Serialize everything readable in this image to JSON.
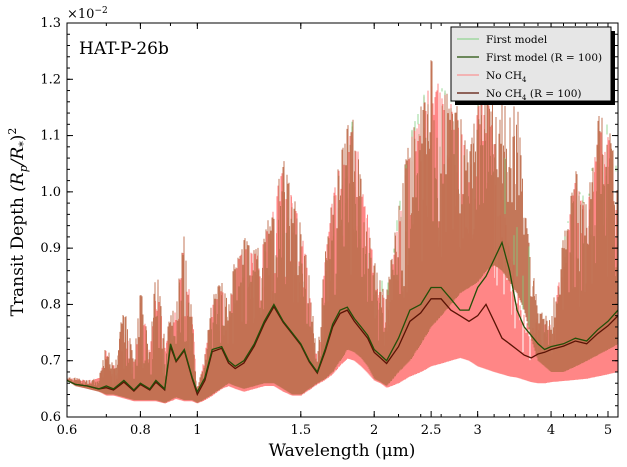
{
  "chart_data": {
    "type": "line",
    "annotation": "HAT-P-26b",
    "xlabel": "Wavelength (μm)",
    "ylabel": "Transit Depth (R_p/R_*)^2",
    "ylabel_parts": [
      "Transit Depth ",
      "(R",
      "p",
      "/R",
      "*",
      ")",
      "2"
    ],
    "y_multiplier": "×10",
    "y_multiplier_exp": "−2",
    "x_scale": "log",
    "xlim": [
      0.6,
      5.2
    ],
    "ylim": [
      0.6,
      1.3
    ],
    "xticks": [
      0.6,
      0.8,
      1,
      1.5,
      2,
      2.5,
      3,
      4,
      5
    ],
    "xtick_labels": [
      "0.6",
      "0.8",
      "1",
      "1.5",
      "2",
      "2.5",
      "3",
      "4",
      "5"
    ],
    "yticks": [
      0.6,
      0.7,
      0.8,
      0.9,
      1.0,
      1.1,
      1.2,
      1.3
    ],
    "ytick_labels": [
      "0.6",
      "0.7",
      "0.8",
      "0.9",
      "1.0",
      "1.1",
      "1.2",
      "1.3"
    ],
    "grid": false,
    "legend_position": "top-right",
    "legend": [
      {
        "label": "First model",
        "sub": "",
        "color": "#7fd07f",
        "width": 1
      },
      {
        "label": "First model (R = 100)",
        "sub": "",
        "color": "#234f08",
        "width": 1.3
      },
      {
        "label": "No CH",
        "sub": "4",
        "color": "#ff8080",
        "width": 1
      },
      {
        "label": "No CH",
        "sub": "4",
        "suffix": " (R = 100)",
        "color": "#5a1305",
        "width": 1.3
      }
    ],
    "colors": {
      "first_model": "#7fd07f",
      "first_model_r100": "#234f08",
      "no_ch4": "#ff8080",
      "no_ch4_r100": "#5a1305",
      "overlap_fill": "#c07050"
    },
    "series": [
      {
        "name": "First model",
        "kind": "high-res envelope",
        "x": [
          0.6,
          0.62,
          0.65,
          0.68,
          0.7,
          0.72,
          0.75,
          0.78,
          0.8,
          0.83,
          0.85,
          0.88,
          0.9,
          0.92,
          0.95,
          0.98,
          1.0,
          1.03,
          1.06,
          1.1,
          1.13,
          1.16,
          1.2,
          1.25,
          1.3,
          1.35,
          1.4,
          1.45,
          1.5,
          1.55,
          1.6,
          1.65,
          1.7,
          1.75,
          1.8,
          1.85,
          1.9,
          1.95,
          2.0,
          2.05,
          2.1,
          2.2,
          2.3,
          2.4,
          2.5,
          2.6,
          2.7,
          2.8,
          2.9,
          3.0,
          3.1,
          3.2,
          3.3,
          3.4,
          3.5,
          3.6,
          3.7,
          3.8,
          3.9,
          4.0,
          4.2,
          4.4,
          4.6,
          4.8,
          5.0,
          5.2
        ],
        "y_max": [
          0.67,
          0.67,
          0.665,
          0.67,
          0.73,
          0.69,
          0.8,
          0.7,
          0.84,
          0.71,
          0.88,
          0.74,
          0.78,
          0.8,
          0.93,
          0.78,
          0.65,
          0.71,
          0.82,
          0.84,
          0.8,
          0.89,
          0.92,
          0.9,
          0.92,
          1.0,
          1.06,
          1.0,
          0.95,
          0.85,
          0.7,
          0.9,
          1.0,
          1.06,
          1.12,
          1.13,
          1.05,
          0.98,
          0.88,
          0.85,
          0.83,
          0.97,
          1.11,
          1.15,
          1.24,
          1.2,
          1.18,
          1.14,
          1.06,
          1.17,
          1.21,
          1.15,
          1.17,
          1.13,
          1.18,
          0.98,
          0.88,
          0.8,
          0.78,
          0.78,
          0.92,
          1.04,
          0.98,
          1.14,
          1.12,
          1.04
        ],
        "y_min": [
          0.665,
          0.655,
          0.65,
          0.645,
          0.64,
          0.64,
          0.635,
          0.63,
          0.63,
          0.63,
          0.63,
          0.625,
          0.63,
          0.635,
          0.63,
          0.63,
          0.625,
          0.632,
          0.64,
          0.652,
          0.66,
          0.655,
          0.65,
          0.655,
          0.66,
          0.66,
          0.65,
          0.64,
          0.64,
          0.65,
          0.66,
          0.668,
          0.68,
          0.7,
          0.72,
          0.715,
          0.705,
          0.69,
          0.668,
          0.662,
          0.655,
          0.68,
          0.7,
          0.73,
          0.76,
          0.78,
          0.8,
          0.82,
          0.83,
          0.84,
          0.86,
          0.87,
          0.86,
          0.84,
          0.82,
          0.79,
          0.74,
          0.7,
          0.69,
          0.68,
          0.68,
          0.69,
          0.7,
          0.71,
          0.72,
          0.73
        ]
      },
      {
        "name": "First model (R = 100)",
        "kind": "binned line",
        "x": [
          0.6,
          0.62,
          0.65,
          0.68,
          0.7,
          0.72,
          0.75,
          0.78,
          0.8,
          0.83,
          0.85,
          0.88,
          0.9,
          0.92,
          0.95,
          0.98,
          1.0,
          1.03,
          1.06,
          1.1,
          1.13,
          1.16,
          1.2,
          1.25,
          1.3,
          1.35,
          1.4,
          1.45,
          1.5,
          1.55,
          1.6,
          1.65,
          1.7,
          1.75,
          1.8,
          1.85,
          1.9,
          1.95,
          2.0,
          2.05,
          2.1,
          2.2,
          2.3,
          2.4,
          2.5,
          2.6,
          2.7,
          2.8,
          2.9,
          3.0,
          3.1,
          3.2,
          3.3,
          3.4,
          3.5,
          3.6,
          3.7,
          3.8,
          3.9,
          4.0,
          4.2,
          4.4,
          4.6,
          4.8,
          5.0,
          5.2
        ],
        "y": [
          0.665,
          0.658,
          0.655,
          0.65,
          0.655,
          0.65,
          0.665,
          0.648,
          0.66,
          0.65,
          0.665,
          0.65,
          0.73,
          0.7,
          0.72,
          0.67,
          0.645,
          0.67,
          0.72,
          0.725,
          0.7,
          0.69,
          0.7,
          0.73,
          0.77,
          0.8,
          0.77,
          0.75,
          0.73,
          0.7,
          0.68,
          0.72,
          0.765,
          0.79,
          0.795,
          0.775,
          0.76,
          0.745,
          0.72,
          0.71,
          0.7,
          0.74,
          0.79,
          0.8,
          0.83,
          0.83,
          0.81,
          0.79,
          0.79,
          0.83,
          0.85,
          0.88,
          0.91,
          0.86,
          0.79,
          0.76,
          0.745,
          0.73,
          0.72,
          0.725,
          0.73,
          0.74,
          0.735,
          0.755,
          0.77,
          0.79
        ]
      },
      {
        "name": "No CH4",
        "kind": "high-res envelope",
        "x": [
          0.6,
          0.62,
          0.65,
          0.68,
          0.7,
          0.72,
          0.75,
          0.78,
          0.8,
          0.83,
          0.85,
          0.88,
          0.9,
          0.92,
          0.95,
          0.98,
          1.0,
          1.03,
          1.06,
          1.1,
          1.13,
          1.16,
          1.2,
          1.25,
          1.3,
          1.35,
          1.4,
          1.45,
          1.5,
          1.55,
          1.6,
          1.65,
          1.7,
          1.75,
          1.8,
          1.85,
          1.9,
          1.95,
          2.0,
          2.05,
          2.1,
          2.2,
          2.3,
          2.4,
          2.5,
          2.6,
          2.7,
          2.8,
          2.9,
          3.0,
          3.1,
          3.2,
          3.3,
          3.4,
          3.5,
          3.6,
          3.7,
          3.8,
          3.9,
          4.0,
          4.2,
          4.4,
          4.6,
          4.8,
          5.0,
          5.2
        ],
        "y_max": [
          0.67,
          0.67,
          0.665,
          0.67,
          0.72,
          0.69,
          0.78,
          0.7,
          0.82,
          0.71,
          0.86,
          0.74,
          0.77,
          0.79,
          0.91,
          0.78,
          0.65,
          0.71,
          0.8,
          0.83,
          0.79,
          0.87,
          0.9,
          0.89,
          0.91,
          0.99,
          1.04,
          0.99,
          0.94,
          0.84,
          0.69,
          0.88,
          0.99,
          1.05,
          1.1,
          1.11,
          1.04,
          0.97,
          0.86,
          0.83,
          0.8,
          0.95,
          1.09,
          1.13,
          1.22,
          1.18,
          1.16,
          1.12,
          1.04,
          1.15,
          1.19,
          1.1,
          1.0,
          0.9,
          0.85,
          0.78,
          0.75,
          0.78,
          0.77,
          0.77,
          0.9,
          1.02,
          0.96,
          1.12,
          1.1,
          1.02
        ],
        "y_min": [
          0.665,
          0.655,
          0.65,
          0.645,
          0.638,
          0.638,
          0.633,
          0.628,
          0.628,
          0.628,
          0.628,
          0.624,
          0.628,
          0.632,
          0.628,
          0.628,
          0.624,
          0.63,
          0.638,
          0.65,
          0.655,
          0.65,
          0.645,
          0.65,
          0.655,
          0.655,
          0.645,
          0.638,
          0.638,
          0.648,
          0.658,
          0.666,
          0.676,
          0.692,
          0.704,
          0.7,
          0.69,
          0.678,
          0.665,
          0.66,
          0.652,
          0.66,
          0.672,
          0.68,
          0.69,
          0.695,
          0.7,
          0.705,
          0.7,
          0.69,
          0.685,
          0.68,
          0.676,
          0.672,
          0.67,
          0.666,
          0.662,
          0.66,
          0.66,
          0.662,
          0.664,
          0.666,
          0.668,
          0.672,
          0.676,
          0.68
        ]
      },
      {
        "name": "No CH4 (R = 100)",
        "kind": "binned line",
        "x": [
          0.6,
          0.62,
          0.65,
          0.68,
          0.7,
          0.72,
          0.75,
          0.78,
          0.8,
          0.83,
          0.85,
          0.88,
          0.9,
          0.92,
          0.95,
          0.98,
          1.0,
          1.03,
          1.06,
          1.1,
          1.13,
          1.16,
          1.2,
          1.25,
          1.3,
          1.35,
          1.4,
          1.45,
          1.5,
          1.55,
          1.6,
          1.65,
          1.7,
          1.75,
          1.8,
          1.85,
          1.9,
          1.95,
          2.0,
          2.05,
          2.1,
          2.2,
          2.3,
          2.4,
          2.5,
          2.6,
          2.7,
          2.8,
          2.9,
          3.0,
          3.1,
          3.2,
          3.3,
          3.4,
          3.5,
          3.6,
          3.7,
          3.8,
          3.9,
          4.0,
          4.2,
          4.4,
          4.6,
          4.8,
          5.0,
          5.2
        ],
        "y": [
          0.665,
          0.658,
          0.655,
          0.65,
          0.652,
          0.648,
          0.662,
          0.646,
          0.658,
          0.648,
          0.662,
          0.648,
          0.725,
          0.698,
          0.718,
          0.668,
          0.64,
          0.665,
          0.716,
          0.722,
          0.696,
          0.686,
          0.696,
          0.726,
          0.766,
          0.796,
          0.768,
          0.748,
          0.728,
          0.698,
          0.678,
          0.716,
          0.76,
          0.784,
          0.79,
          0.77,
          0.755,
          0.74,
          0.715,
          0.705,
          0.695,
          0.725,
          0.77,
          0.785,
          0.81,
          0.81,
          0.79,
          0.78,
          0.77,
          0.78,
          0.8,
          0.77,
          0.74,
          0.73,
          0.72,
          0.71,
          0.705,
          0.712,
          0.715,
          0.72,
          0.726,
          0.735,
          0.73,
          0.748,
          0.762,
          0.78
        ]
      }
    ]
  }
}
